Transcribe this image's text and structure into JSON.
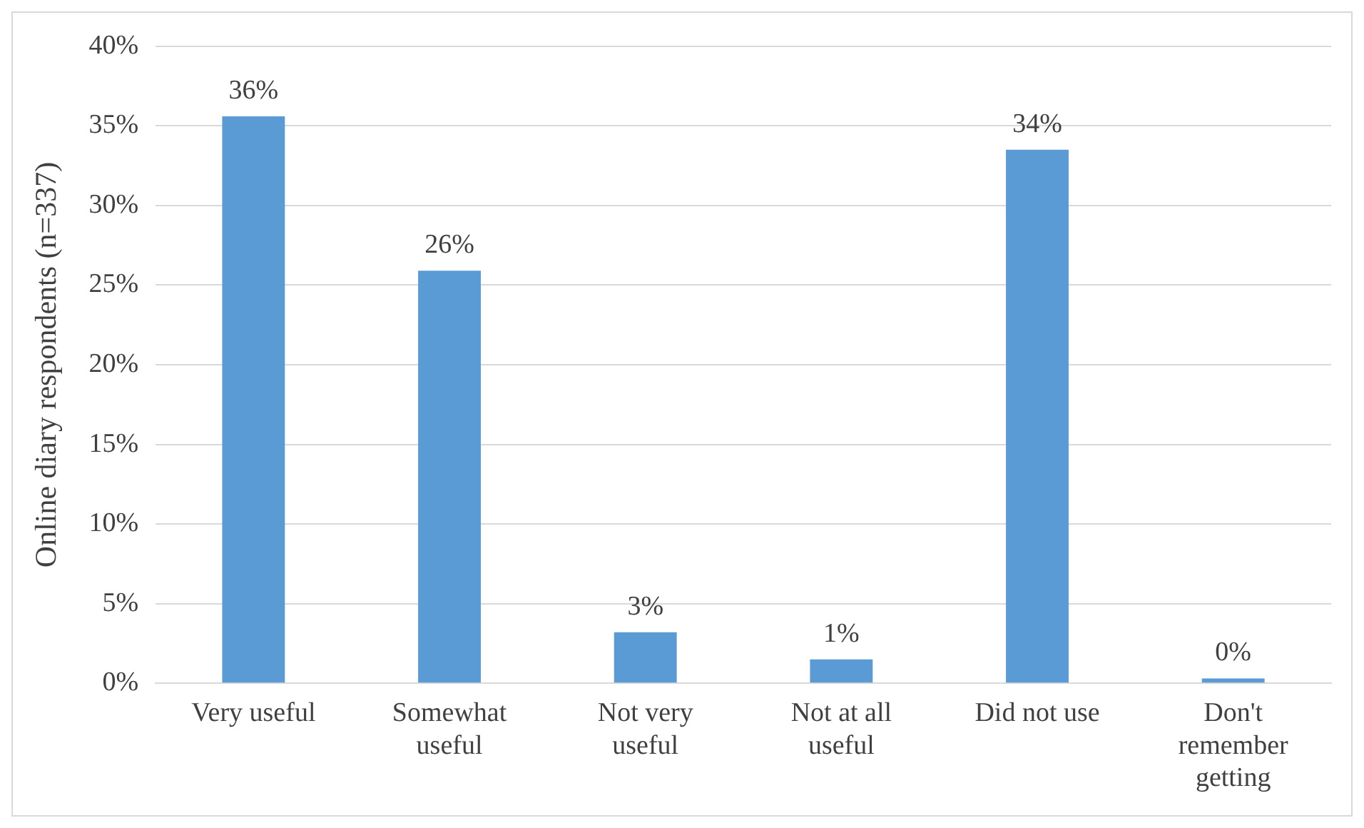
{
  "chart_data": {
    "type": "bar",
    "ylabel": "Online diary respondents (n=337)",
    "categories": [
      "Very useful",
      "Somewhat useful",
      "Not very useful",
      "Not at all useful",
      "Did not use",
      "Don't remember getting"
    ],
    "values": [
      35.6,
      25.9,
      3.2,
      1.5,
      33.5,
      0.3
    ],
    "value_labels": [
      "36%",
      "26%",
      "3%",
      "1%",
      "34%",
      "0%"
    ],
    "color": "#5b9bd5",
    "ylim": [
      0,
      40
    ],
    "yticks": [
      {
        "value": 0,
        "label": "0%"
      },
      {
        "value": 5,
        "label": "5%"
      },
      {
        "value": 10,
        "label": "10%"
      },
      {
        "value": 15,
        "label": "15%"
      },
      {
        "value": 20,
        "label": "20%"
      },
      {
        "value": 25,
        "label": "25%"
      },
      {
        "value": 30,
        "label": "30%"
      },
      {
        "value": 35,
        "label": "35%"
      },
      {
        "value": 40,
        "label": "40%"
      }
    ],
    "grid": "y",
    "legend": false
  }
}
